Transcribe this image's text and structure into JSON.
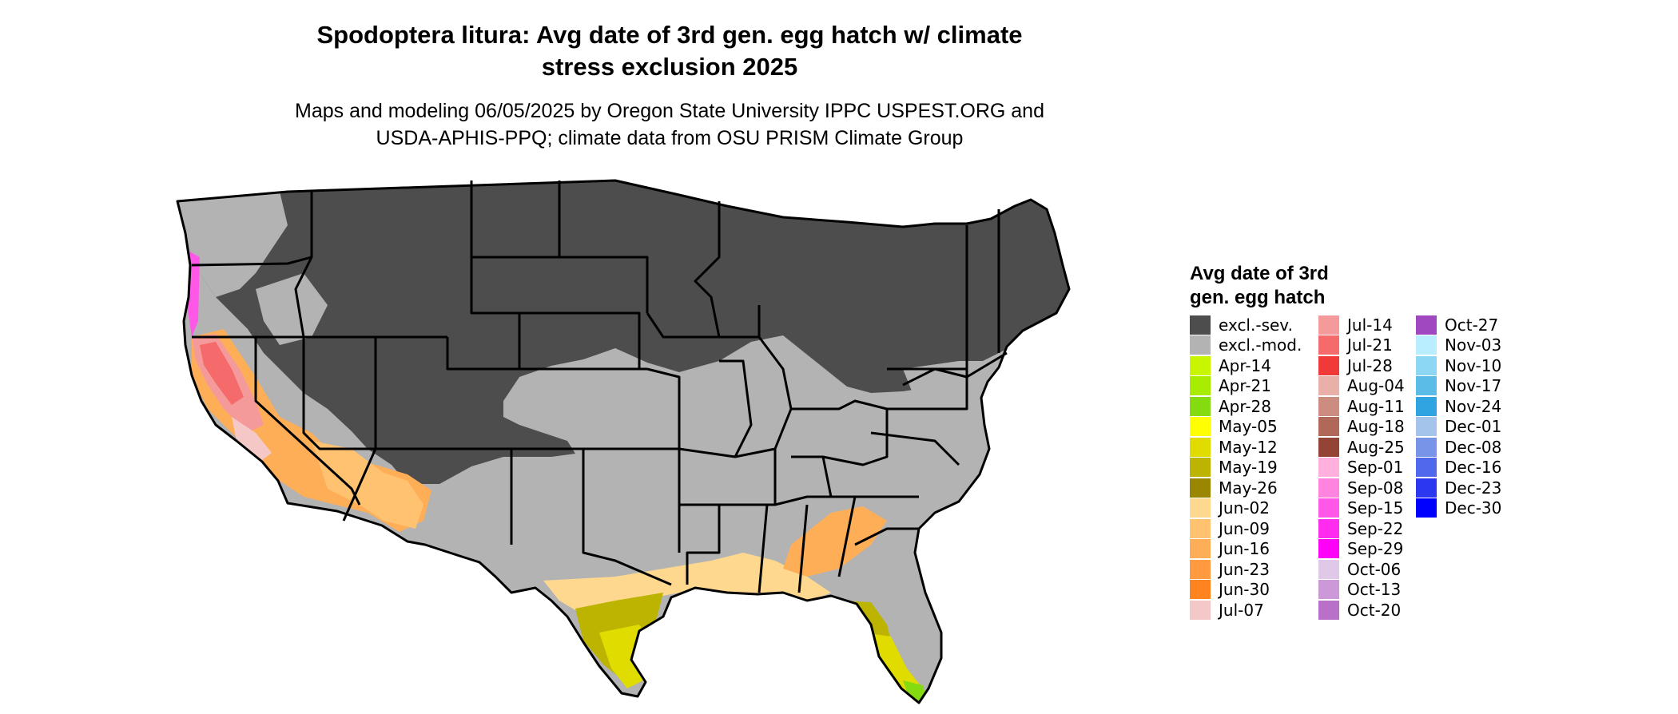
{
  "title_line1": "Spodoptera litura: Avg date of 3rd gen. egg hatch w/ climate",
  "title_line2": "stress exclusion 2025",
  "subtitle_line1": "Maps and modeling 06/05/2025 by Oregon State University IPPC USPEST.ORG and",
  "subtitle_line2": "USDA-APHIS-PPQ; climate data from OSU PRISM Climate Group",
  "legend": {
    "title_line1": "Avg date of 3rd",
    "title_line2": "gen. egg hatch",
    "items": [
      {
        "label": "excl.-sev.",
        "color": "#4d4d4d"
      },
      {
        "label": "excl.-mod.",
        "color": "#b3b3b3"
      },
      {
        "label": "Apr-14",
        "color": "#c8f500"
      },
      {
        "label": "Apr-21",
        "color": "#a8ec00"
      },
      {
        "label": "Apr-28",
        "color": "#84dc10"
      },
      {
        "label": "May-05",
        "color": "#ffff00"
      },
      {
        "label": "May-12",
        "color": "#e0dc00"
      },
      {
        "label": "May-19",
        "color": "#bcb400"
      },
      {
        "label": "May-26",
        "color": "#9a8600"
      },
      {
        "label": "Jun-02",
        "color": "#ffd890"
      },
      {
        "label": "Jun-09",
        "color": "#ffc270"
      },
      {
        "label": "Jun-16",
        "color": "#ffae58"
      },
      {
        "label": "Jun-23",
        "color": "#ff9a40"
      },
      {
        "label": "Jun-30",
        "color": "#ff8420"
      },
      {
        "label": "Jul-07",
        "color": "#f5c8c8"
      },
      {
        "label": "Jul-14",
        "color": "#f59a9a"
      },
      {
        "label": "Jul-21",
        "color": "#f56a6a"
      },
      {
        "label": "Jul-28",
        "color": "#f03a3a"
      },
      {
        "label": "Aug-04",
        "color": "#e8b0a8"
      },
      {
        "label": "Aug-11",
        "color": "#cc8c80"
      },
      {
        "label": "Aug-18",
        "color": "#b06858"
      },
      {
        "label": "Aug-25",
        "color": "#944434"
      },
      {
        "label": "Sep-01",
        "color": "#ffb0dc"
      },
      {
        "label": "Sep-08",
        "color": "#ff84e0"
      },
      {
        "label": "Sep-15",
        "color": "#ff58e8"
      },
      {
        "label": "Sep-22",
        "color": "#ff2cf0"
      },
      {
        "label": "Sep-29",
        "color": "#ff00f8"
      },
      {
        "label": "Oct-06",
        "color": "#e0c8e8"
      },
      {
        "label": "Oct-13",
        "color": "#cc98d8"
      },
      {
        "label": "Oct-20",
        "color": "#b870c8"
      },
      {
        "label": "Oct-27",
        "color": "#a048c0"
      },
      {
        "label": "Nov-03",
        "color": "#b8eeff"
      },
      {
        "label": "Nov-10",
        "color": "#8cd8f4"
      },
      {
        "label": "Nov-17",
        "color": "#5cbce8"
      },
      {
        "label": "Nov-24",
        "color": "#30a4e0"
      },
      {
        "label": "Dec-01",
        "color": "#a4c4ec"
      },
      {
        "label": "Dec-08",
        "color": "#7894e8"
      },
      {
        "label": "Dec-16",
        "color": "#5068ec"
      },
      {
        "label": "Dec-23",
        "color": "#2c38f0"
      },
      {
        "label": "Dec-30",
        "color": "#0000ff"
      }
    ]
  }
}
